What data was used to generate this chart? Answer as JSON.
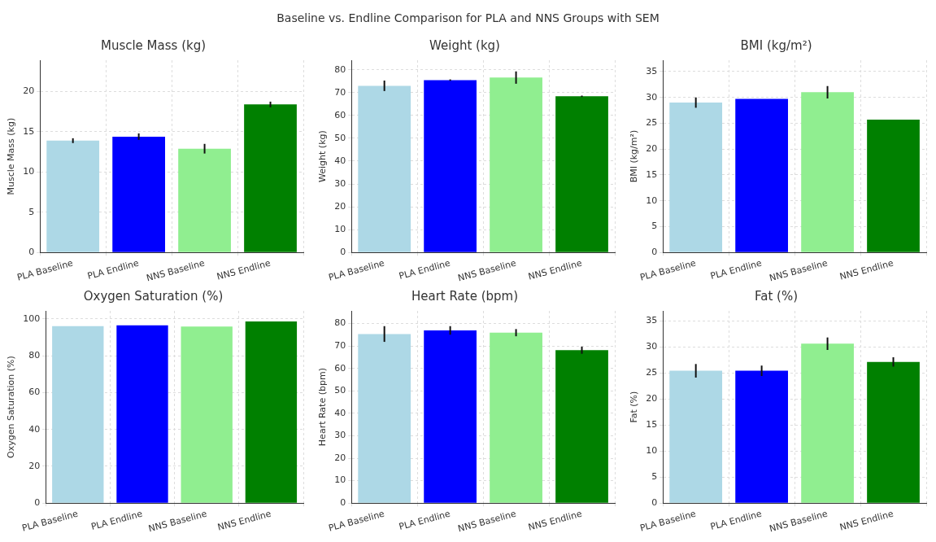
{
  "chart_data": [
    {
      "type": "bar",
      "title": "Muscle Mass (kg)",
      "ylabel": "Muscle Mass (kg)",
      "annotations": [
        "Baseline vs. Endline Comparison for PLA and NNS Groups with SEM"
      ],
      "categories": [
        "PLA Baseline",
        "PLA Endline",
        "NNS Baseline",
        "NNS Endline"
      ],
      "values": [
        13.9,
        14.4,
        12.9,
        18.4
      ],
      "errors": [
        0.3,
        0.4,
        0.6,
        0.35
      ],
      "colors": [
        "#add8e6",
        "#0000ff",
        "#90ee90",
        "#008000"
      ],
      "ylim": [
        0,
        23.9
      ],
      "yticks": [
        0,
        5,
        10,
        15,
        20
      ],
      "grid": true
    },
    {
      "type": "bar",
      "title": "Weight (kg)",
      "ylabel": "Weight (kg)",
      "categories": [
        "PLA Baseline",
        "PLA Endline",
        "NNS Baseline",
        "NNS Endline"
      ],
      "values": [
        73,
        75.5,
        76.6,
        68.4
      ],
      "errors": [
        2.3,
        0.3,
        2.7,
        0.3
      ],
      "colors": [
        "#add8e6",
        "#0000ff",
        "#90ee90",
        "#008000"
      ],
      "ylim": [
        0,
        84.2
      ],
      "yticks": [
        0,
        10,
        20,
        30,
        40,
        50,
        60,
        70,
        80
      ],
      "grid": true
    },
    {
      "type": "bar",
      "title": "BMI (kg/m²)",
      "ylabel": "BMI (kg/m²)",
      "categories": [
        "PLA Baseline",
        "PLA Endline",
        "NNS Baseline",
        "NNS Endline"
      ],
      "values": [
        29,
        29.7,
        31,
        25.7
      ],
      "errors": [
        1,
        null,
        1.2,
        null
      ],
      "colors": [
        "#add8e6",
        "#0000ff",
        "#90ee90",
        "#008000"
      ],
      "ylim": [
        0,
        37.2
      ],
      "yticks": [
        0,
        5,
        10,
        15,
        20,
        25,
        30,
        35
      ],
      "grid": true
    },
    {
      "type": "bar",
      "title": "Oxygen Saturation (%)",
      "ylabel": "Oxygen Saturation (%)",
      "categories": [
        "PLA Baseline",
        "PLA Endline",
        "NNS Baseline",
        "NNS Endline"
      ],
      "values": [
        96.1,
        96.5,
        95.9,
        98.7
      ],
      "colors": [
        "#add8e6",
        "#0000ff",
        "#90ee90",
        "#008000"
      ],
      "ylim": [
        0,
        104.4
      ],
      "yticks": [
        0,
        20,
        40,
        60,
        80,
        100
      ],
      "grid": true
    },
    {
      "type": "bar",
      "title": "Heart Rate (bpm)",
      "ylabel": "Heart Rate (bpm)",
      "categories": [
        "PLA Baseline",
        "PLA Endline",
        "NNS Baseline",
        "NNS Endline"
      ],
      "values": [
        75.3,
        76.9,
        75.9,
        68.1
      ],
      "errors": [
        3.5,
        1.9,
        1.6,
        1.6
      ],
      "colors": [
        "#add8e6",
        "#0000ff",
        "#90ee90",
        "#008000"
      ],
      "ylim": [
        0,
        85.6
      ],
      "yticks": [
        0,
        10,
        20,
        30,
        40,
        50,
        60,
        70,
        80
      ],
      "grid": true
    },
    {
      "type": "bar",
      "title": "Fat (%)",
      "ylabel": "Fat (%)",
      "categories": [
        "PLA Baseline",
        "PLA Endline",
        "NNS Baseline",
        "NNS Endline"
      ],
      "values": [
        25.4,
        25.4,
        30.6,
        27.1
      ],
      "errors": [
        1.3,
        1,
        1.2,
        0.9
      ],
      "colors": [
        "#add8e6",
        "#0000ff",
        "#90ee90",
        "#008000"
      ],
      "ylim": [
        0,
        36.9
      ],
      "yticks": [
        0,
        5,
        10,
        15,
        20,
        25,
        30,
        35
      ],
      "grid": true
    }
  ]
}
